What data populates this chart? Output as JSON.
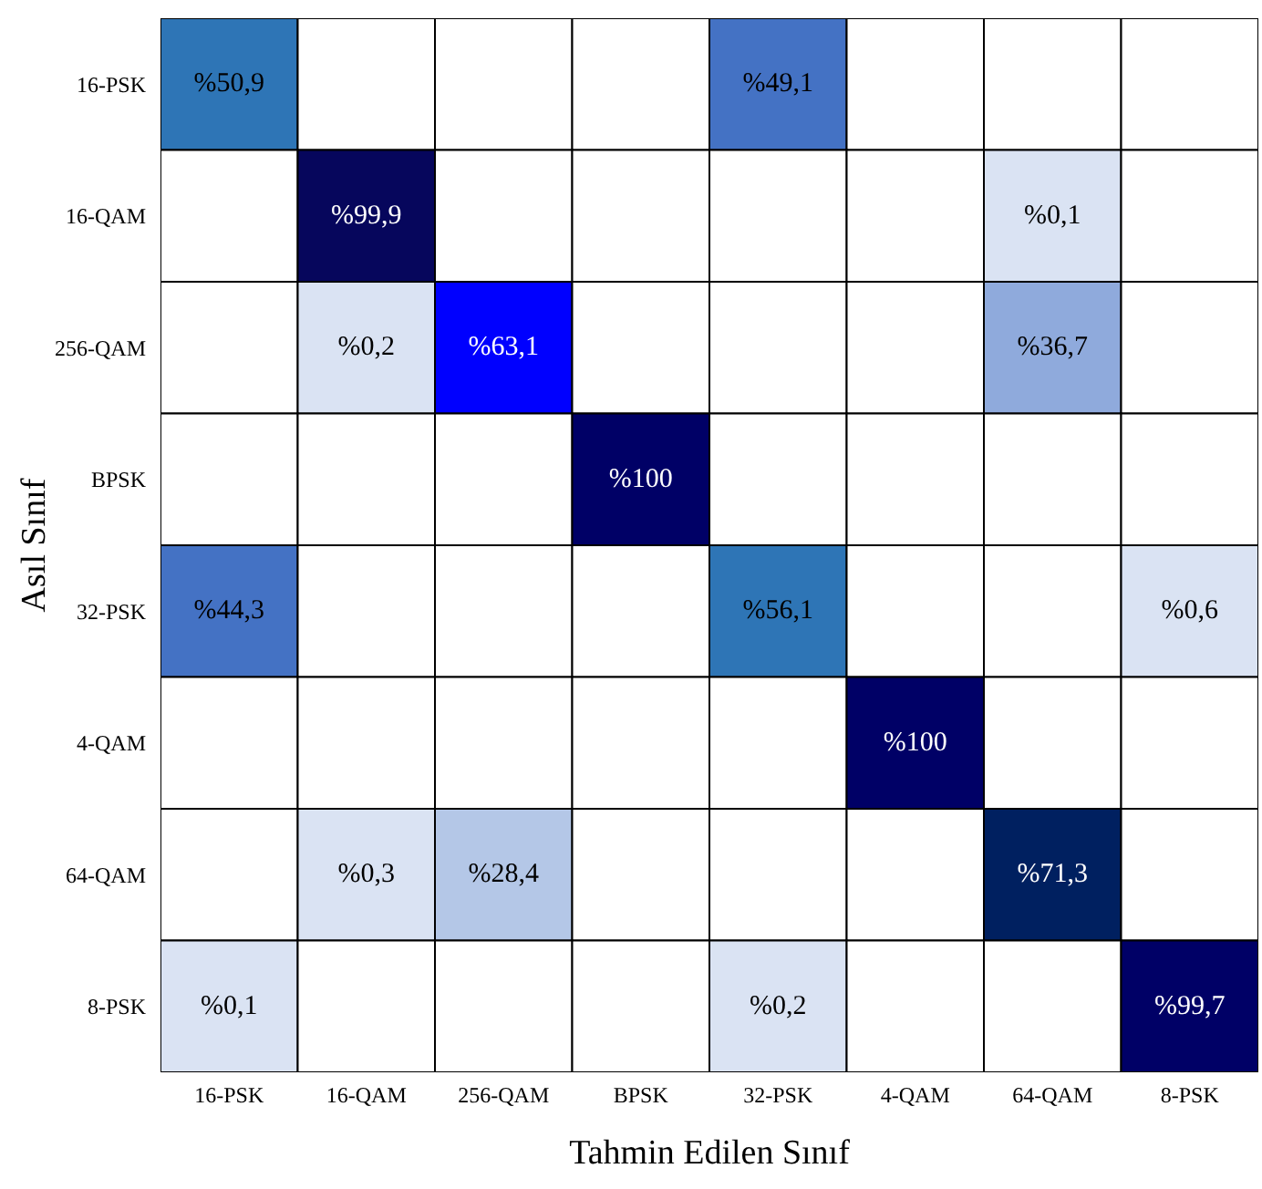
{
  "chart_data": {
    "type": "heatmap",
    "xlabel": "Tahmin Edilen Sınıf",
    "ylabel": "Asıl Sınıf",
    "categories": [
      "16-PSK",
      "16-QAM",
      "256-QAM",
      "BPSK",
      "32-PSK",
      "4-QAM",
      "64-QAM",
      "8-PSK"
    ],
    "y_categories": [
      "16-PSK",
      "16-QAM",
      "256-QAM",
      "BPSK",
      "32-PSK",
      "4-QAM",
      "64-QAM",
      "8-PSK"
    ],
    "cells": [
      [
        50.9,
        null,
        null,
        null,
        49.1,
        null,
        null,
        null
      ],
      [
        null,
        99.9,
        null,
        null,
        null,
        null,
        0.1,
        null
      ],
      [
        null,
        0.2,
        63.1,
        null,
        null,
        null,
        36.7,
        null
      ],
      [
        null,
        null,
        null,
        100,
        null,
        null,
        null,
        null
      ],
      [
        44.3,
        null,
        null,
        null,
        56.1,
        null,
        null,
        0.6
      ],
      [
        null,
        null,
        null,
        null,
        null,
        100,
        null,
        null
      ],
      [
        null,
        0.3,
        28.4,
        null,
        null,
        null,
        71.3,
        null
      ],
      [
        0.1,
        null,
        null,
        null,
        0.2,
        null,
        null,
        99.7
      ]
    ],
    "cell_labels": [
      [
        "%50,9",
        null,
        null,
        null,
        "%49,1",
        null,
        null,
        null
      ],
      [
        null,
        "%99,9",
        null,
        null,
        null,
        null,
        "%0,1",
        null
      ],
      [
        null,
        "%0,2",
        "%63,1",
        null,
        null,
        null,
        "%36,7",
        null
      ],
      [
        null,
        null,
        null,
        "%100",
        null,
        null,
        null,
        null
      ],
      [
        "%44,3",
        null,
        null,
        null,
        "%56,1",
        null,
        null,
        "%0,6"
      ],
      [
        null,
        null,
        null,
        null,
        null,
        "%100",
        null,
        null
      ],
      [
        null,
        "%0,3",
        "%28,4",
        null,
        null,
        null,
        "%71,3",
        null
      ],
      [
        "%0,1",
        null,
        null,
        null,
        "%0,2",
        null,
        null,
        "%99,7"
      ]
    ],
    "colors": [
      [
        "#2e75b6",
        null,
        null,
        null,
        "#4472c4",
        null,
        null,
        null
      ],
      [
        null,
        "#06065c",
        null,
        null,
        null,
        null,
        "#dae3f3",
        null
      ],
      [
        null,
        "#dae3f3",
        "#0000ff",
        null,
        null,
        null,
        "#8faadc",
        null
      ],
      [
        null,
        null,
        null,
        "#000066",
        null,
        null,
        null,
        null
      ],
      [
        "#4472c4",
        null,
        null,
        null,
        "#2e75b6",
        null,
        null,
        "#dae3f3"
      ],
      [
        null,
        null,
        null,
        null,
        null,
        "#000066",
        null,
        null
      ],
      [
        null,
        "#dae3f3",
        "#b4c7e7",
        null,
        null,
        null,
        "#002060",
        null
      ],
      [
        "#dae3f3",
        null,
        null,
        null,
        "#dae3f3",
        null,
        null,
        "#000066"
      ]
    ]
  }
}
